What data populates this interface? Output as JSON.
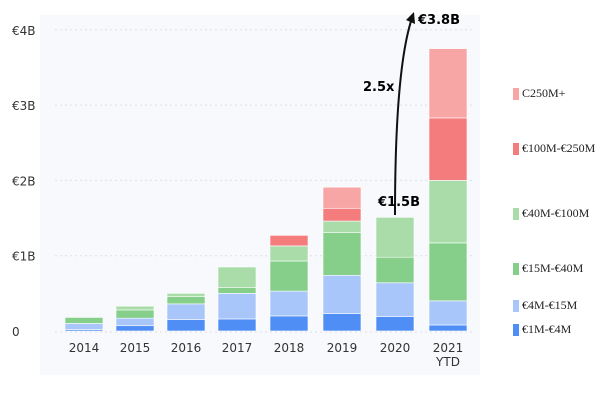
{
  "chart_data": {
    "type": "bar",
    "stacked": true,
    "categories": [
      "2014",
      "2015",
      "2016",
      "2017",
      "2018",
      "2019",
      "2020",
      "2021\nYTD"
    ],
    "yticks": [
      "0",
      "€1B",
      "€2B",
      "€3B",
      "€4B"
    ],
    "ylim": [
      0,
      4
    ],
    "grid": true,
    "legend_placement": "right",
    "series": [
      {
        "name": "€1M-€4M",
        "color": "#4f8ef5",
        "values": [
          0.02,
          0.07,
          0.15,
          0.16,
          0.2,
          0.23,
          0.19,
          0.08
        ]
      },
      {
        "name": "€4M-€15M",
        "color": "#a8c6fa",
        "values": [
          0.08,
          0.1,
          0.21,
          0.34,
          0.33,
          0.51,
          0.45,
          0.32
        ]
      },
      {
        "name": "€15M-€40M",
        "color": "#86cf8a",
        "values": [
          0.08,
          0.11,
          0.1,
          0.08,
          0.4,
          0.57,
          0.34,
          0.77
        ]
      },
      {
        "name": "€40M-€100M",
        "color": "#a9dca9",
        "values": [
          0,
          0.05,
          0.04,
          0.27,
          0.2,
          0.15,
          0.53,
          0.83
        ]
      },
      {
        "name": "€100M-€250M",
        "color": "#f47c7c",
        "values": [
          0,
          0,
          0,
          0,
          0.14,
          0.17,
          0,
          0.83
        ]
      },
      {
        "name": "C250M+",
        "color": "#f8a5a5",
        "values": [
          0,
          0,
          0,
          0,
          0,
          0.28,
          0,
          0.92
        ]
      }
    ],
    "annotations": {
      "label_2020": "€1.5B",
      "label_2021": "€3.8B",
      "growth": "2.5x"
    }
  }
}
